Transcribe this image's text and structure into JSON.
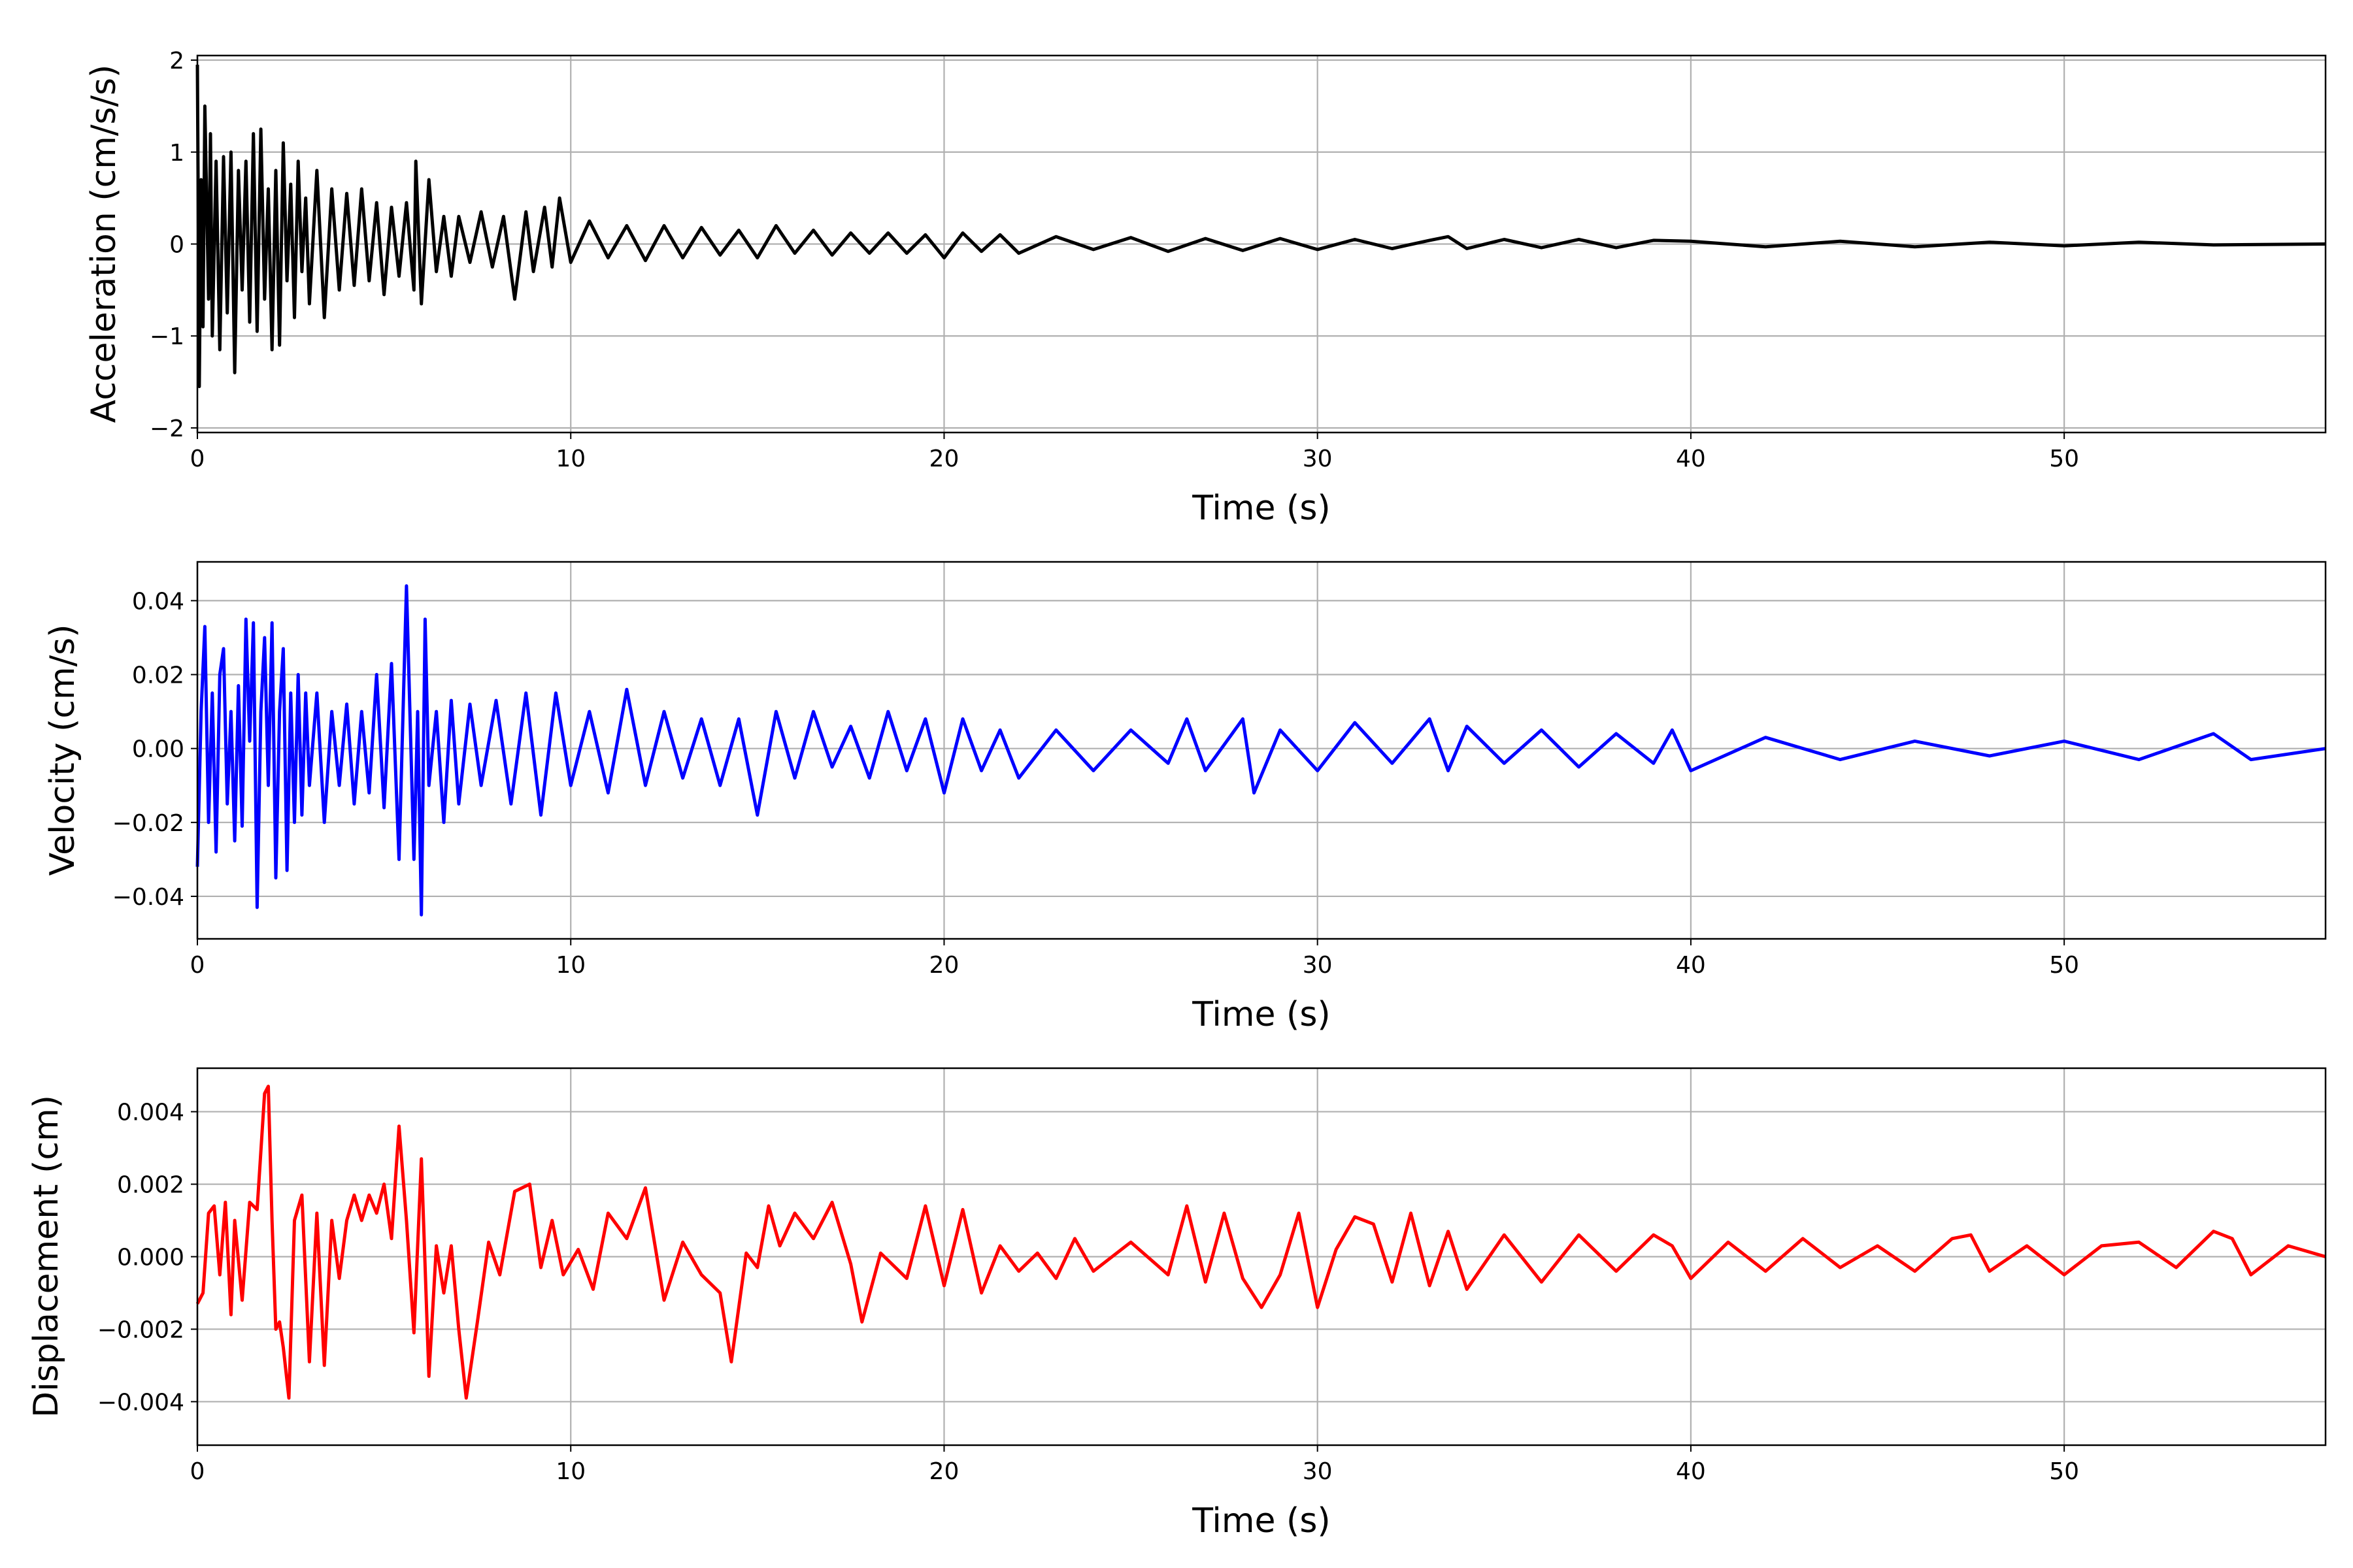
{
  "chart_data": [
    {
      "type": "line",
      "xlabel": "Time (s)",
      "ylabel": "Acceleration (cm/s/s)",
      "xlim": [
        0,
        57
      ],
      "ylim": [
        -2.05,
        2.05
      ],
      "xticks": [
        0,
        10,
        20,
        30,
        40,
        50
      ],
      "yticks": [
        -2,
        -1,
        0,
        1,
        2
      ],
      "yticklabels": [
        "−2",
        "−1",
        "0",
        "1",
        "2"
      ],
      "grid": true,
      "series": [
        {
          "color": "#000000",
          "x": [
            0,
            0.05,
            0.1,
            0.15,
            0.2,
            0.3,
            0.35,
            0.4,
            0.5,
            0.6,
            0.7,
            0.8,
            0.9,
            1.0,
            1.1,
            1.2,
            1.3,
            1.4,
            1.5,
            1.6,
            1.7,
            1.8,
            1.9,
            2.0,
            2.1,
            2.2,
            2.3,
            2.4,
            2.5,
            2.6,
            2.7,
            2.8,
            2.9,
            3.0,
            3.2,
            3.4,
            3.6,
            3.8,
            4.0,
            4.2,
            4.4,
            4.6,
            4.8,
            5.0,
            5.2,
            5.4,
            5.6,
            5.8,
            5.85,
            6.0,
            6.2,
            6.4,
            6.6,
            6.8,
            7.0,
            7.3,
            7.6,
            7.9,
            8.2,
            8.5,
            8.8,
            9.0,
            9.3,
            9.5,
            9.7,
            10.0,
            10.5,
            11.0,
            11.5,
            12.0,
            12.5,
            13.0,
            13.5,
            14.0,
            14.5,
            15.0,
            15.5,
            16.0,
            16.5,
            17.0,
            17.5,
            18.0,
            18.5,
            19.0,
            19.5,
            20.0,
            20.5,
            21.0,
            21.5,
            22.0,
            23.0,
            24.0,
            25.0,
            26.0,
            27.0,
            28.0,
            29.0,
            30.0,
            31.0,
            32.0,
            33.0,
            33.5,
            34.0,
            35.0,
            36.0,
            37.0,
            38.0,
            39.0,
            40.0,
            42.0,
            44.0,
            46.0,
            48.0,
            50.0,
            52.0,
            54.0,
            57.0
          ],
          "y": [
            1.95,
            -1.55,
            0.7,
            -0.9,
            1.5,
            -0.6,
            1.2,
            -1.0,
            0.9,
            -1.15,
            0.95,
            -0.75,
            1.0,
            -1.4,
            0.8,
            -0.5,
            0.9,
            -0.85,
            1.2,
            -0.95,
            1.25,
            -0.6,
            0.6,
            -1.15,
            0.8,
            -1.1,
            1.1,
            -0.4,
            0.65,
            -0.8,
            0.9,
            -0.3,
            0.5,
            -0.65,
            0.8,
            -0.8,
            0.6,
            -0.5,
            0.55,
            -0.45,
            0.6,
            -0.4,
            0.45,
            -0.55,
            0.4,
            -0.35,
            0.45,
            -0.5,
            0.9,
            -0.65,
            0.7,
            -0.3,
            0.3,
            -0.35,
            0.3,
            -0.2,
            0.35,
            -0.25,
            0.3,
            -0.6,
            0.35,
            -0.3,
            0.4,
            -0.25,
            0.5,
            -0.2,
            0.25,
            -0.15,
            0.2,
            -0.18,
            0.2,
            -0.15,
            0.18,
            -0.12,
            0.15,
            -0.15,
            0.2,
            -0.1,
            0.15,
            -0.12,
            0.12,
            -0.1,
            0.12,
            -0.1,
            0.1,
            -0.15,
            0.12,
            -0.08,
            0.1,
            -0.1,
            0.08,
            -0.06,
            0.07,
            -0.08,
            0.06,
            -0.07,
            0.06,
            -0.06,
            0.05,
            -0.05,
            0.04,
            0.08,
            -0.05,
            0.05,
            -0.04,
            0.05,
            -0.04,
            0.04,
            0.03,
            -0.03,
            0.03,
            -0.03,
            0.02,
            -0.02,
            0.02,
            -0.01,
            0.0
          ]
        }
      ]
    },
    {
      "type": "line",
      "xlabel": "Time (s)",
      "ylabel": "Velocity (cm/s)",
      "xlim": [
        0,
        57
      ],
      "ylim": [
        -0.0515,
        0.0505
      ],
      "xticks": [
        0,
        10,
        20,
        30,
        40,
        50
      ],
      "yticks": [
        -0.04,
        -0.02,
        0.0,
        0.02,
        0.04
      ],
      "yticklabels": [
        "−0.04",
        "−0.02",
        "0.00",
        "0.02",
        "0.04"
      ],
      "grid": true,
      "series": [
        {
          "color": "#0000ff",
          "x": [
            0,
            0.1,
            0.2,
            0.3,
            0.4,
            0.5,
            0.6,
            0.7,
            0.8,
            0.9,
            1.0,
            1.1,
            1.2,
            1.3,
            1.4,
            1.5,
            1.6,
            1.7,
            1.8,
            1.9,
            2.0,
            2.1,
            2.2,
            2.3,
            2.4,
            2.5,
            2.6,
            2.7,
            2.8,
            2.9,
            3.0,
            3.2,
            3.4,
            3.6,
            3.8,
            4.0,
            4.2,
            4.4,
            4.6,
            4.8,
            5.0,
            5.2,
            5.4,
            5.6,
            5.8,
            5.9,
            6.0,
            6.1,
            6.2,
            6.4,
            6.6,
            6.8,
            7.0,
            7.3,
            7.6,
            8.0,
            8.4,
            8.8,
            9.2,
            9.6,
            10.0,
            10.5,
            11.0,
            11.5,
            12.0,
            12.5,
            13.0,
            13.5,
            14.0,
            14.5,
            15.0,
            15.5,
            16.0,
            16.5,
            17.0,
            17.5,
            18.0,
            18.5,
            19.0,
            19.5,
            20.0,
            20.5,
            21.0,
            21.5,
            22.0,
            23.0,
            24.0,
            25.0,
            26.0,
            26.5,
            27.0,
            28.0,
            28.3,
            29.0,
            30.0,
            31.0,
            32.0,
            33.0,
            33.5,
            34.0,
            35.0,
            36.0,
            37.0,
            38.0,
            39.0,
            39.5,
            40.0,
            42.0,
            44.0,
            46.0,
            48.0,
            50.0,
            52.0,
            54.0,
            55.0,
            57.0
          ],
          "y": [
            -0.032,
            0.01,
            0.033,
            -0.02,
            0.015,
            -0.028,
            0.02,
            0.027,
            -0.015,
            0.01,
            -0.025,
            0.017,
            -0.021,
            0.035,
            0.002,
            0.034,
            -0.043,
            0.01,
            0.03,
            -0.01,
            0.034,
            -0.035,
            0.01,
            0.027,
            -0.033,
            0.015,
            -0.02,
            0.02,
            -0.018,
            0.015,
            -0.01,
            0.015,
            -0.02,
            0.01,
            -0.01,
            0.012,
            -0.015,
            0.01,
            -0.012,
            0.02,
            -0.016,
            0.023,
            -0.03,
            0.044,
            -0.03,
            0.01,
            -0.045,
            0.035,
            -0.01,
            0.01,
            -0.02,
            0.013,
            -0.015,
            0.012,
            -0.01,
            0.013,
            -0.015,
            0.015,
            -0.018,
            0.015,
            -0.01,
            0.01,
            -0.012,
            0.016,
            -0.01,
            0.01,
            -0.008,
            0.008,
            -0.01,
            0.008,
            -0.018,
            0.01,
            -0.008,
            0.01,
            -0.005,
            0.006,
            -0.008,
            0.01,
            -0.006,
            0.008,
            -0.012,
            0.008,
            -0.006,
            0.005,
            -0.008,
            0.005,
            -0.006,
            0.005,
            -0.004,
            0.008,
            -0.006,
            0.008,
            -0.012,
            0.005,
            -0.006,
            0.007,
            -0.004,
            0.008,
            -0.006,
            0.006,
            -0.004,
            0.005,
            -0.005,
            0.004,
            -0.004,
            0.005,
            -0.006,
            0.003,
            -0.003,
            0.002,
            -0.002,
            0.002,
            -0.003,
            0.004,
            -0.003,
            0.0
          ]
        }
      ]
    },
    {
      "type": "line",
      "xlabel": "Time (s)",
      "ylabel": "Displacement (cm)",
      "xlim": [
        0,
        57
      ],
      "ylim": [
        -0.0052,
        0.0052
      ],
      "xticks": [
        0,
        10,
        20,
        30,
        40,
        50
      ],
      "yticks": [
        -0.004,
        -0.002,
        0.0,
        0.002,
        0.004
      ],
      "yticklabels": [
        "−0.004",
        "−0.002",
        "0.000",
        "0.002",
        "0.004"
      ],
      "grid": true,
      "series": [
        {
          "color": "#ff0000",
          "x": [
            0,
            0.15,
            0.3,
            0.45,
            0.6,
            0.75,
            0.9,
            1.0,
            1.2,
            1.4,
            1.6,
            1.8,
            1.9,
            2.0,
            2.1,
            2.2,
            2.3,
            2.45,
            2.6,
            2.8,
            3.0,
            3.2,
            3.4,
            3.6,
            3.8,
            4.0,
            4.2,
            4.4,
            4.6,
            4.8,
            5.0,
            5.2,
            5.4,
            5.6,
            5.8,
            6.0,
            6.2,
            6.4,
            6.6,
            6.8,
            7.0,
            7.2,
            7.5,
            7.8,
            8.1,
            8.5,
            8.9,
            9.2,
            9.5,
            9.8,
            10.2,
            10.6,
            11.0,
            11.5,
            12.0,
            12.5,
            13.0,
            13.5,
            14.0,
            14.3,
            14.7,
            15.0,
            15.3,
            15.6,
            16.0,
            16.5,
            17.0,
            17.5,
            17.8,
            18.3,
            19.0,
            19.5,
            20.0,
            20.5,
            21.0,
            21.5,
            22.0,
            22.5,
            23.0,
            23.5,
            24.0,
            25.0,
            26.0,
            26.5,
            27.0,
            27.5,
            28.0,
            28.5,
            29.0,
            29.5,
            30.0,
            30.5,
            31.0,
            31.5,
            32.0,
            32.5,
            33.0,
            33.5,
            34.0,
            35.0,
            36.0,
            37.0,
            38.0,
            39.0,
            39.5,
            40.0,
            41.0,
            42.0,
            43.0,
            44.0,
            45.0,
            46.0,
            47.0,
            47.5,
            48.0,
            49.0,
            50.0,
            51.0,
            52.0,
            53.0,
            54.0,
            54.5,
            55.0,
            56.0,
            57.0
          ],
          "y": [
            -0.0013,
            -0.001,
            0.0012,
            0.0014,
            -0.0005,
            0.0015,
            -0.0016,
            0.001,
            -0.0012,
            0.0015,
            0.0013,
            0.0045,
            0.0047,
            0.001,
            -0.002,
            -0.0018,
            -0.0025,
            -0.0039,
            0.001,
            0.0017,
            -0.0029,
            0.0012,
            -0.003,
            0.001,
            -0.0006,
            0.001,
            0.0017,
            0.001,
            0.0017,
            0.0012,
            0.002,
            0.0005,
            0.0036,
            0.001,
            -0.0021,
            0.0027,
            -0.0033,
            0.0003,
            -0.001,
            0.0003,
            -0.002,
            -0.0039,
            -0.0018,
            0.0004,
            -0.0005,
            0.0018,
            0.002,
            -0.0003,
            0.001,
            -0.0005,
            0.0002,
            -0.0009,
            0.0012,
            0.0005,
            0.0019,
            -0.0012,
            0.0004,
            -0.0005,
            -0.001,
            -0.0029,
            0.0001,
            -0.0003,
            0.0014,
            0.0003,
            0.0012,
            0.0005,
            0.0015,
            -0.0002,
            -0.0018,
            0.0001,
            -0.0006,
            0.0014,
            -0.0008,
            0.0013,
            -0.001,
            0.0003,
            -0.0004,
            0.0001,
            -0.0006,
            0.0005,
            -0.0004,
            0.0004,
            -0.0005,
            0.0014,
            -0.0007,
            0.0012,
            -0.0006,
            -0.0014,
            -0.0005,
            0.0012,
            -0.0014,
            0.0002,
            0.0011,
            0.0009,
            -0.0007,
            0.0012,
            -0.0008,
            0.0007,
            -0.0009,
            0.0006,
            -0.0007,
            0.0006,
            -0.0004,
            0.0006,
            0.0003,
            -0.0006,
            0.0004,
            -0.0004,
            0.0005,
            -0.0003,
            0.0003,
            -0.0004,
            0.0005,
            0.0006,
            -0.0004,
            0.0003,
            -0.0005,
            0.0003,
            0.0004,
            -0.0003,
            0.0007,
            0.0005,
            -0.0005,
            0.0003,
            0.0
          ]
        }
      ]
    }
  ]
}
